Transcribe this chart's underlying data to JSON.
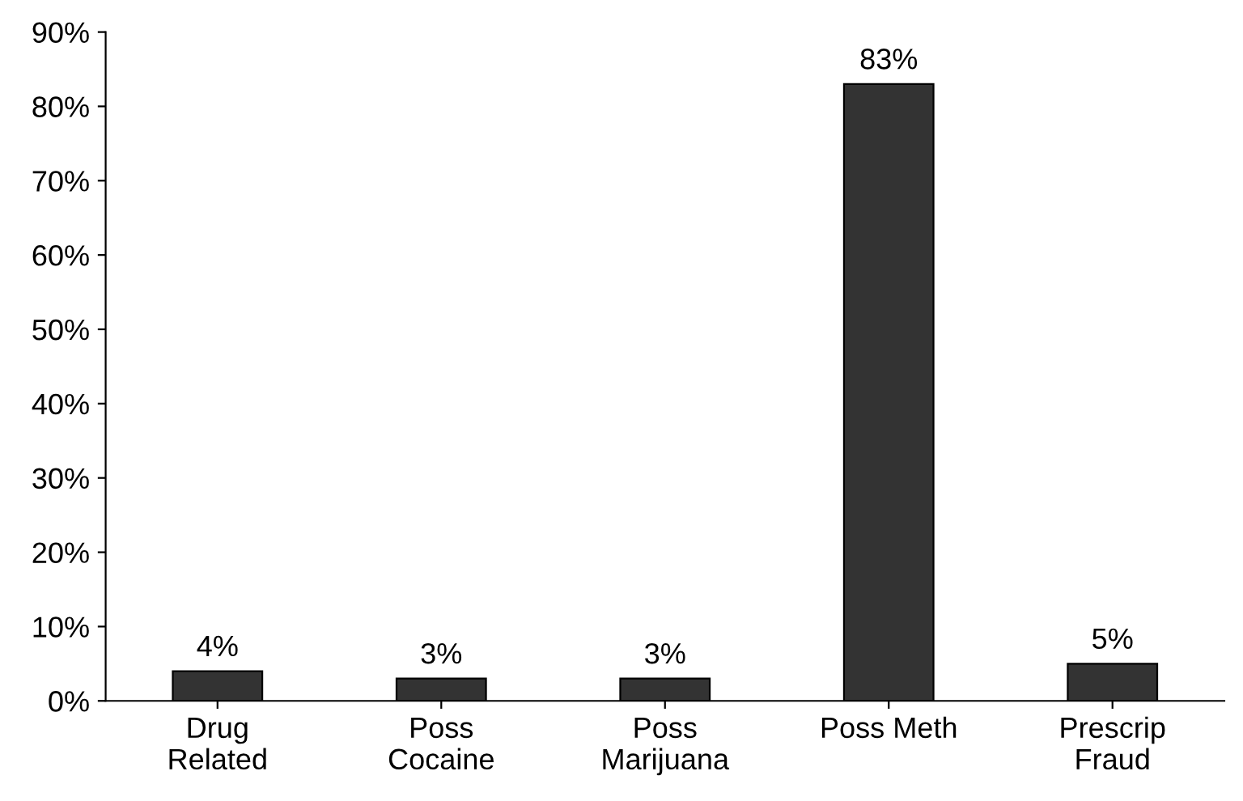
{
  "chart_data": {
    "type": "bar",
    "categories": [
      "Drug\nRelated",
      "Poss\nCocaine",
      "Poss\nMarijuana",
      "Poss Meth",
      "Prescrip\nFraud"
    ],
    "values": [
      4,
      3,
      3,
      83,
      5
    ],
    "value_labels": [
      "4%",
      "3%",
      "3%",
      "83%",
      "5%"
    ],
    "color": "#333333",
    "ylim": [
      0,
      90
    ],
    "yticks": [
      {
        "value": 0,
        "label": "0%"
      },
      {
        "value": 10,
        "label": "10%"
      },
      {
        "value": 20,
        "label": "20%"
      },
      {
        "value": 30,
        "label": "30%"
      },
      {
        "value": 40,
        "label": "40%"
      },
      {
        "value": 50,
        "label": "50%"
      },
      {
        "value": 60,
        "label": "60%"
      },
      {
        "value": 70,
        "label": "70%"
      },
      {
        "value": 80,
        "label": "80%"
      },
      {
        "value": 90,
        "label": "90%"
      }
    ],
    "grid": false,
    "legend": false
  }
}
